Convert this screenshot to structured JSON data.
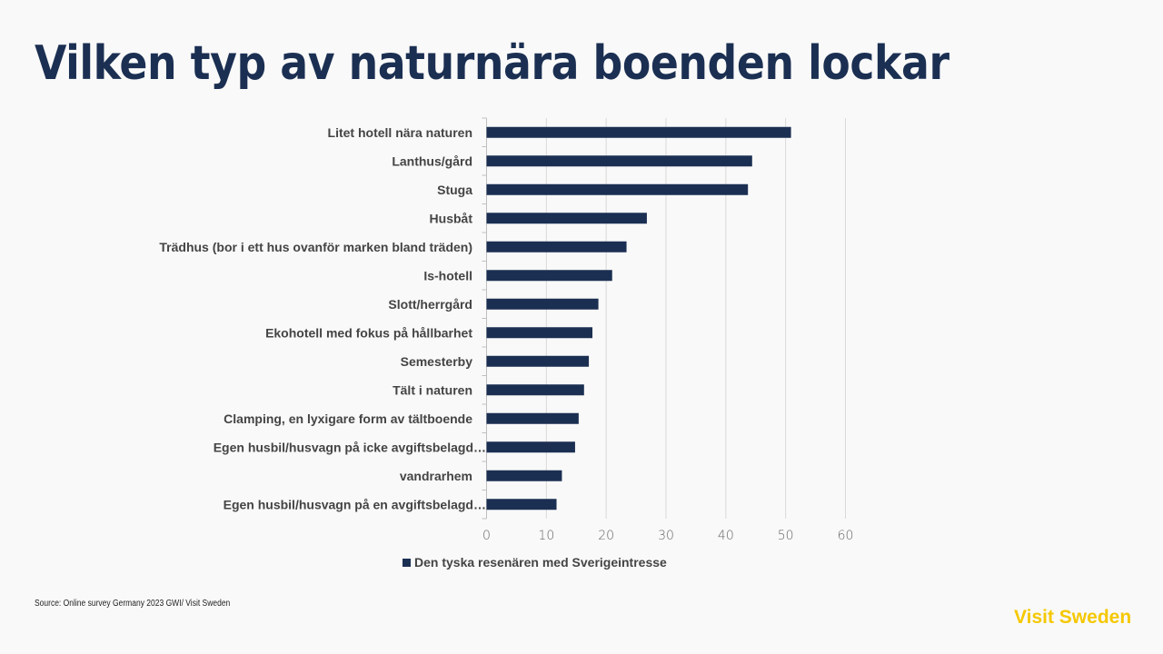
{
  "title": "Vilken typ av naturnära boenden lockar",
  "source": "Source: Online survey Germany 2023 GWI/ Visit Sweden",
  "logo": "Visit Sweden",
  "colors": {
    "bar": "#1b2f52",
    "title": "#1b2f52",
    "logo": "#f5c800",
    "grid": "#d9d9d9"
  },
  "chart_data": {
    "type": "bar",
    "orientation": "horizontal",
    "title": "",
    "xlabel": "",
    "ylabel": "",
    "xlim": [
      0,
      60
    ],
    "xticks": [
      0,
      10,
      20,
      30,
      40,
      50,
      60
    ],
    "grid": true,
    "legend_position": "bottom",
    "categories": [
      "Litet hotell nära naturen",
      "Lanthus/gård",
      "Stuga",
      "Husbåt",
      "Trädhus (bor i ett hus ovanför marken bland träden)",
      "Is-hotell",
      "Slott/herrgård",
      "Ekohotell med fokus på hållbarhet",
      "Semesterby",
      "Tält i naturen",
      "Clamping, en lyxigare form av tältboende",
      "Egen husbil/husvagn på icke avgiftsbelagd…",
      "vandrarhem",
      "Egen husbil/husvagn på en avgiftsbelagd…"
    ],
    "series": [
      {
        "name": "Den tyska resenären med Sverigeintresse",
        "values": [
          50.9,
          44.4,
          43.7,
          26.8,
          23.4,
          21.0,
          18.7,
          17.7,
          17.1,
          16.3,
          15.4,
          14.8,
          12.6,
          11.7
        ]
      }
    ]
  }
}
